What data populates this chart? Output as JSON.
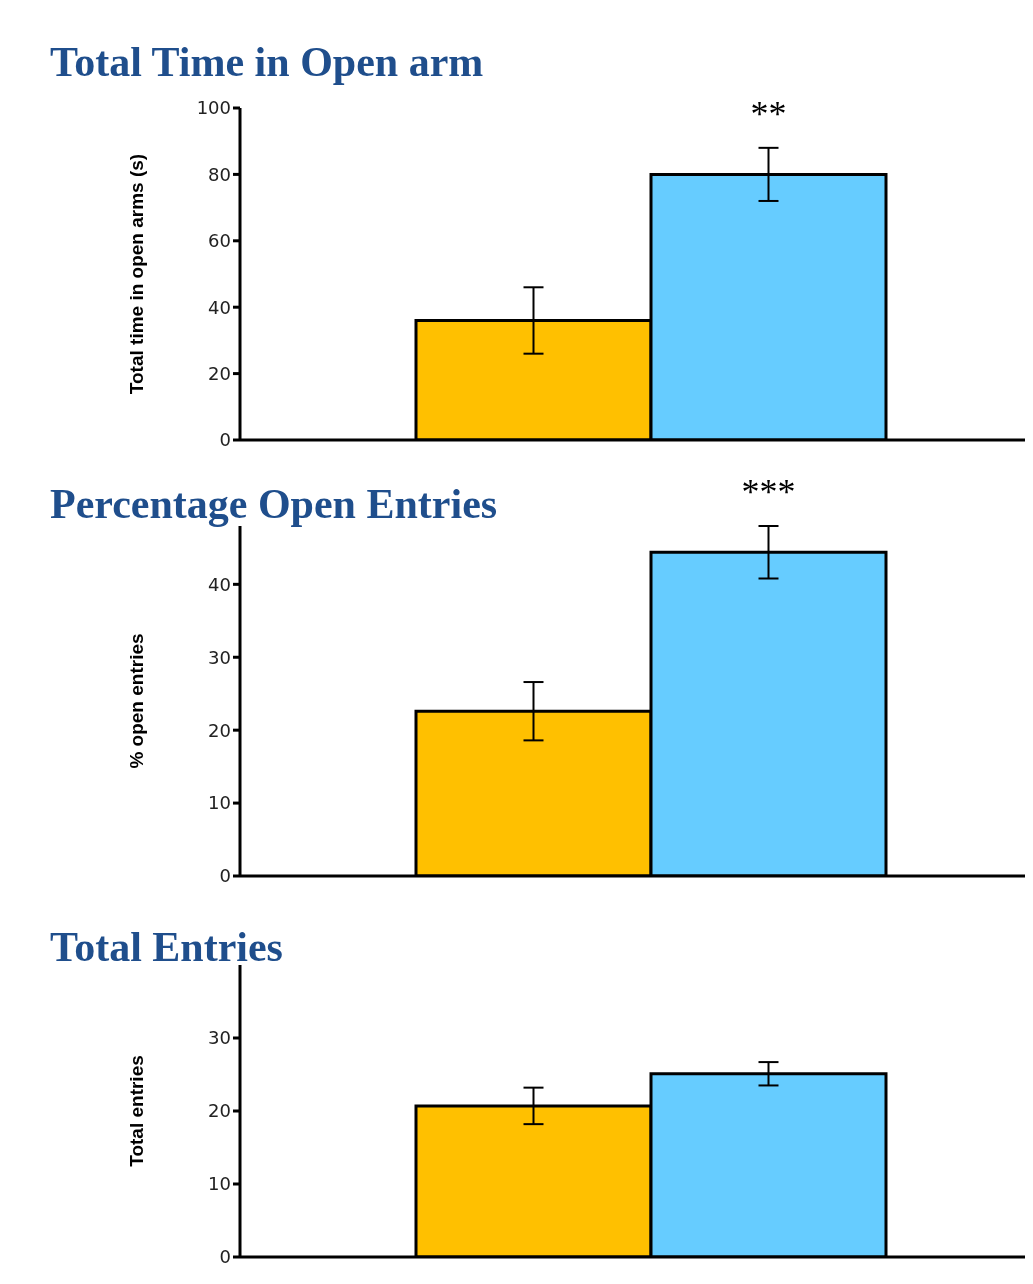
{
  "chart_data": [
    {
      "type": "bar",
      "title": "Total Time in Open arm",
      "ylabel": "Total time in open arms (s)",
      "categories": [
        null,
        null
      ],
      "values": [
        36,
        80
      ],
      "errors": [
        10,
        8
      ],
      "colors": [
        "#ffc000",
        "#66ccff"
      ],
      "ylim": [
        0,
        100
      ],
      "yticks": [
        0,
        20,
        40,
        60,
        80,
        100
      ],
      "annotations": [
        "**"
      ]
    },
    {
      "type": "bar",
      "title": "Percentage Open Entries",
      "ylabel": "% open entries",
      "categories": [
        null,
        null
      ],
      "values": [
        22.6,
        44.4
      ],
      "errors": [
        4,
        3.6
      ],
      "colors": [
        "#ffc000",
        "#66ccff"
      ],
      "ylim": [
        0,
        48
      ],
      "yticks": [
        0,
        10,
        20,
        30,
        40
      ],
      "annotations": [
        "***"
      ]
    },
    {
      "type": "bar",
      "title": "Total Entries",
      "ylabel": "Total entries",
      "categories": [
        null,
        null
      ],
      "values": [
        20.7,
        25.1
      ],
      "errors": [
        2.5,
        1.6
      ],
      "colors": [
        "#ffc000",
        "#66ccff"
      ],
      "ylim": [
        0,
        40
      ],
      "yticks": [
        0,
        10,
        20,
        30
      ]
    }
  ]
}
